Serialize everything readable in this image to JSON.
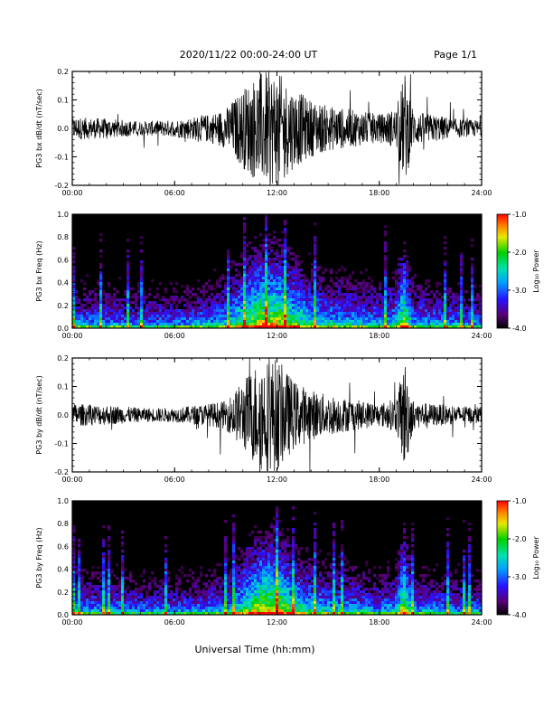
{
  "header": {
    "date_range": "2020/11/22  00:00-24:00 UT",
    "page": "Page 1/1"
  },
  "xlabel": "Universal Time (hh:mm)",
  "x_ticks": [
    "00:00",
    "06:00",
    "12:00",
    "18:00",
    "24:00"
  ],
  "chart_data": [
    {
      "type": "line",
      "ylabel": "PG3 bx dB/dt (nT/sec)",
      "ylim": [
        -0.2,
        0.2
      ],
      "y_ticks": [
        "0.2",
        "0.1",
        "0.0",
        "-0.1",
        "-0.2"
      ],
      "xlim_hours": [
        0,
        24
      ],
      "envelope": {
        "hours": [
          0,
          2,
          4,
          6,
          8,
          9,
          10,
          11,
          12,
          13,
          14,
          15,
          16,
          17,
          18,
          19,
          19.5,
          20,
          21,
          22,
          23,
          24
        ],
        "amplitude": [
          0.04,
          0.035,
          0.025,
          0.03,
          0.05,
          0.07,
          0.14,
          0.2,
          0.2,
          0.14,
          0.1,
          0.08,
          0.07,
          0.06,
          0.05,
          0.07,
          0.2,
          0.06,
          0.05,
          0.04,
          0.03,
          0.03
        ]
      }
    },
    {
      "type": "heatmap",
      "ylabel": "PG3 bx Freq (Hz)",
      "ylim": [
        0.0,
        1.0
      ],
      "y_ticks": [
        "1.0",
        "0.8",
        "0.6",
        "0.4",
        "0.2",
        "0.0"
      ],
      "colorbar": {
        "label": "Log₁₀ Power",
        "range": [
          -4.0,
          -1.0
        ],
        "ticks": [
          "-1.0",
          "-2.0",
          "-3.0",
          "-4.0"
        ]
      }
    },
    {
      "type": "line",
      "ylabel": "PG3 by dB/dt (nT/sec)",
      "ylim": [
        -0.2,
        0.2
      ],
      "y_ticks": [
        "0.2",
        "0.1",
        "0.0",
        "-0.1",
        "-0.2"
      ],
      "xlim_hours": [
        0,
        24
      ],
      "envelope": {
        "hours": [
          0,
          2,
          4,
          6,
          8,
          9,
          10,
          11,
          12,
          13,
          14,
          15,
          16,
          17,
          18,
          19,
          19.5,
          20,
          21,
          22,
          23,
          24
        ],
        "amplitude": [
          0.04,
          0.035,
          0.025,
          0.025,
          0.04,
          0.05,
          0.12,
          0.2,
          0.2,
          0.12,
          0.09,
          0.07,
          0.06,
          0.05,
          0.04,
          0.06,
          0.2,
          0.05,
          0.04,
          0.035,
          0.03,
          0.03
        ]
      }
    },
    {
      "type": "heatmap",
      "ylabel": "PG3 by Freq (Hz)",
      "ylim": [
        0.0,
        1.0
      ],
      "y_ticks": [
        "1.0",
        "0.8",
        "0.6",
        "0.4",
        "0.2",
        "0.0"
      ],
      "colorbar": {
        "label": "Log₁₀ Power",
        "range": [
          -4.0,
          -1.0
        ],
        "ticks": [
          "-1.0",
          "-2.0",
          "-3.0",
          "-4.0"
        ]
      }
    }
  ]
}
